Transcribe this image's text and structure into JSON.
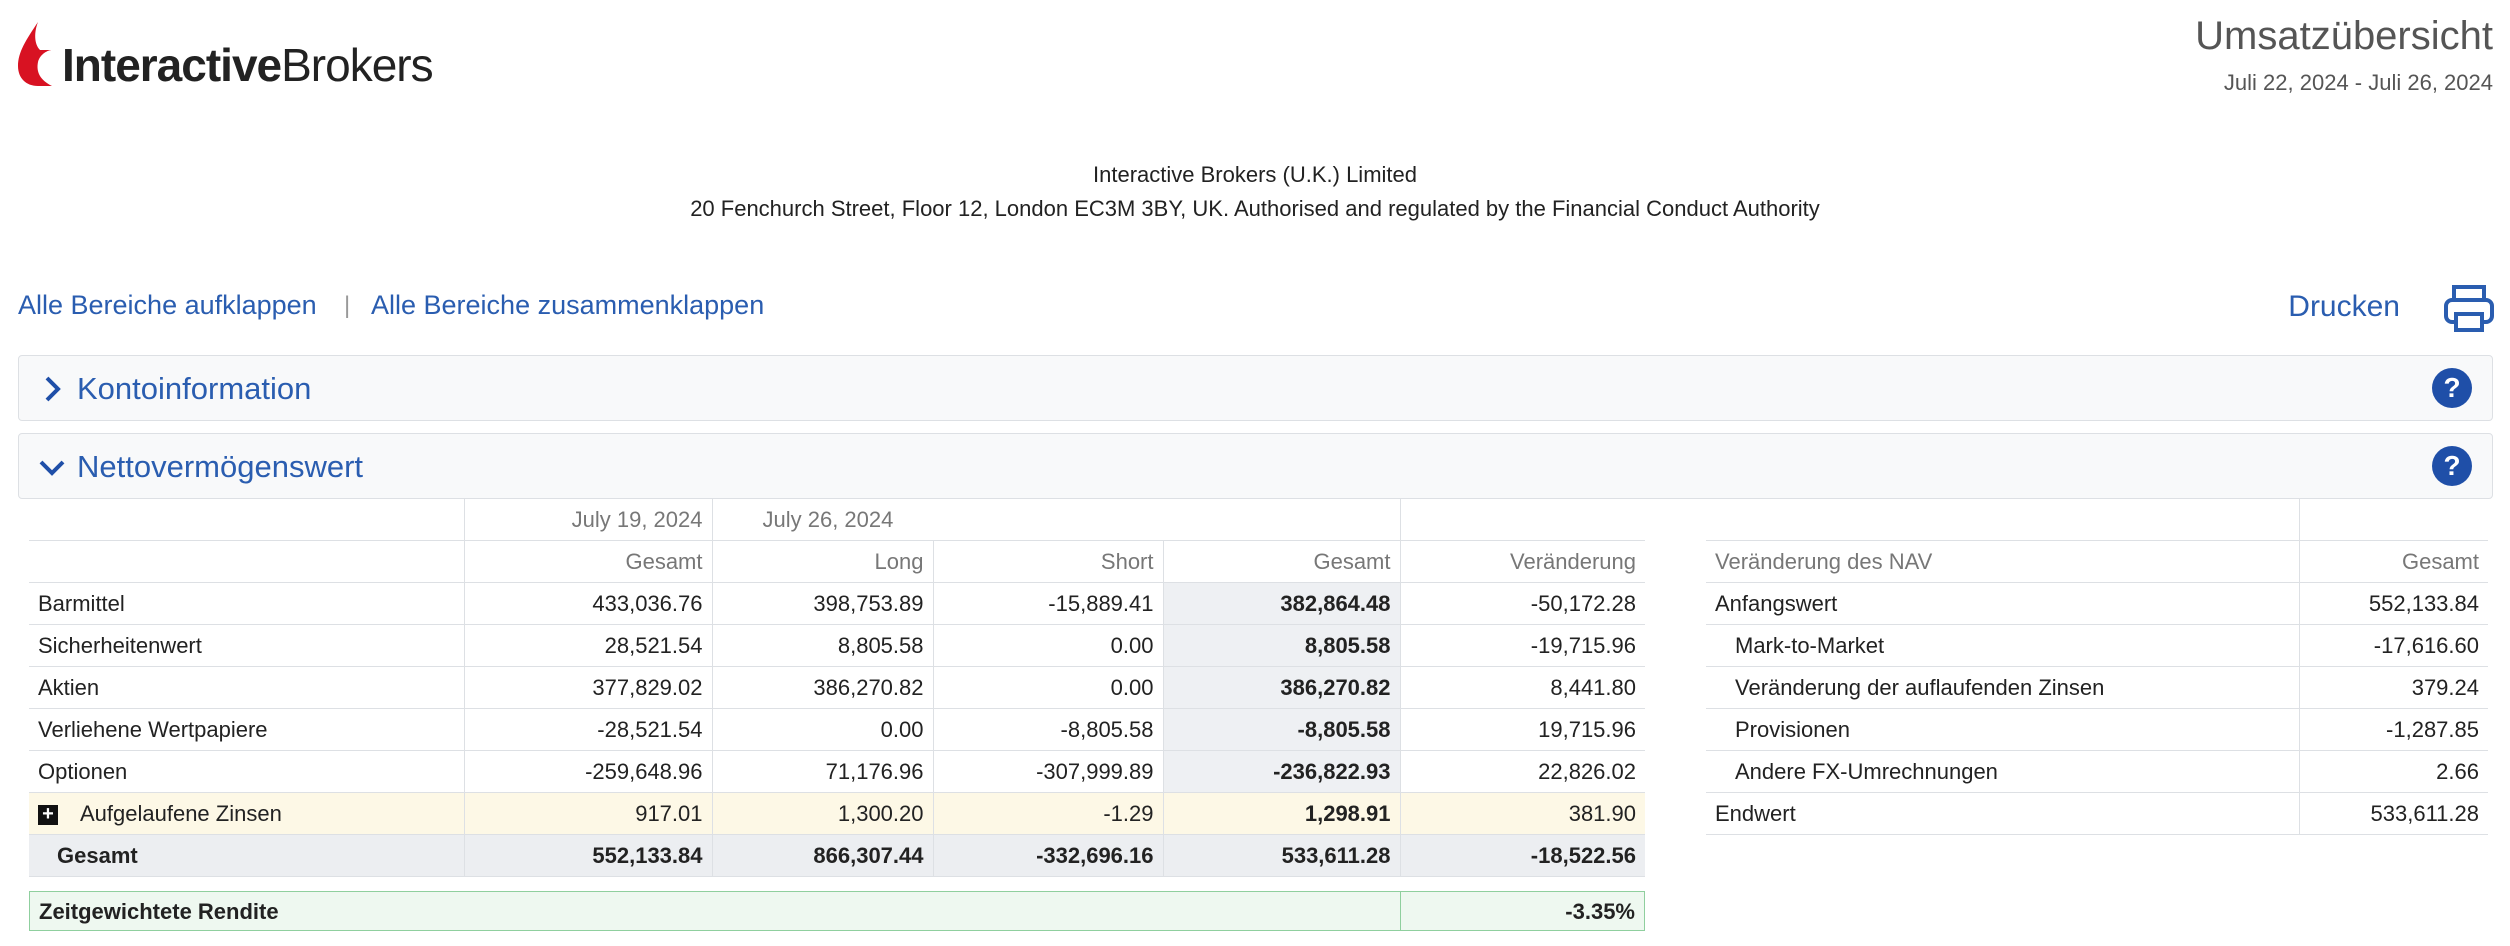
{
  "header": {
    "logo_bold": "Interactive",
    "logo_light": "Brokers",
    "title": "Umsatzübersicht",
    "period": "Juli 22, 2024 - Juli 26, 2024"
  },
  "company": {
    "name": "Interactive Brokers (U.K.) Limited",
    "address": "20 Fenchurch Street, Floor 12, London EC3M 3BY, UK. Authorised and regulated by the Financial Conduct Authority"
  },
  "links": {
    "expand_all": "Alle Bereiche aufklappen",
    "separator": "|",
    "collapse_all": "Alle Bereiche zusammenklappen",
    "print": "Drucken"
  },
  "sections": [
    "Kontoinformation",
    "Nettovermögenswert"
  ],
  "nav_table": {
    "group_headers": [
      "July 19, 2024",
      "July 26, 2024"
    ],
    "columns": [
      "Gesamt",
      "Long",
      "Short",
      "Gesamt",
      "Veränderung"
    ],
    "rows": [
      [
        "Barmittel",
        "433,036.76",
        "398,753.89",
        "-15,889.41",
        "382,864.48",
        "-50,172.28"
      ],
      [
        "Sicherheitenwert",
        "28,521.54",
        "8,805.58",
        "0.00",
        "8,805.58",
        "-19,715.96"
      ],
      [
        "Aktien",
        "377,829.02",
        "386,270.82",
        "0.00",
        "386,270.82",
        "8,441.80"
      ],
      [
        "Verliehene Wertpapiere",
        "-28,521.54",
        "0.00",
        "-8,805.58",
        "-8,805.58",
        "19,715.96"
      ],
      [
        "Optionen",
        "-259,648.96",
        "71,176.96",
        "-307,999.89",
        "-236,822.93",
        "22,826.02"
      ],
      [
        "Aufgelaufene Zinsen",
        "917.01",
        "1,300.20",
        "-1.29",
        "1,298.91",
        "381.90"
      ]
    ],
    "total": [
      "Gesamt",
      "552,133.84",
      "866,307.44",
      "-332,696.16",
      "533,611.28",
      "-18,522.56"
    ],
    "twr": {
      "label": "Zeitgewichtete Rendite",
      "value": "-3.35%"
    }
  },
  "change_table": {
    "columns": [
      "Veränderung des NAV",
      "Gesamt"
    ],
    "rows": [
      [
        "Anfangswert",
        "552,133.84"
      ],
      [
        "Mark-to-Market",
        "-17,616.60"
      ],
      [
        "Veränderung der auflaufenden Zinsen",
        "379.24"
      ],
      [
        "Provisionen",
        "-1,287.85"
      ],
      [
        "Andere FX-Umrechnungen",
        "2.66"
      ],
      [
        "Endwert",
        "533,611.28"
      ]
    ]
  }
}
